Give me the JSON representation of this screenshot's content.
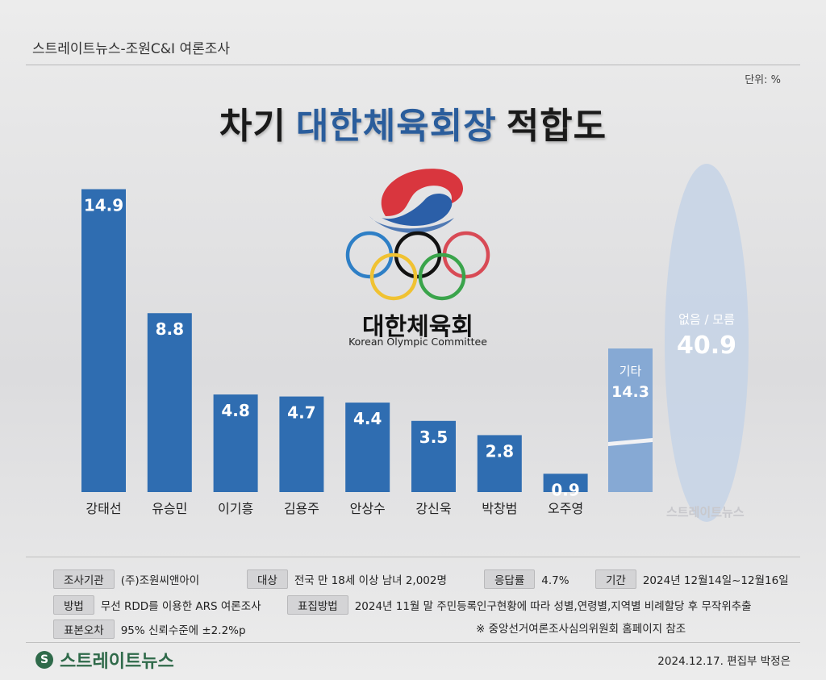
{
  "header": {
    "source": "스트레이트뉴스-조원C&I 여론조사",
    "unit": "단위: %"
  },
  "title": {
    "part1": "차기",
    "part2": "대한체육회장",
    "part3": "적합도"
  },
  "logo": {
    "name": "대한체육회",
    "english": "Korean Olympic Committee"
  },
  "colors": {
    "bar": "#2f6db1",
    "bar_light": "#86a9d4",
    "ellipse": "#c5d3e6"
  },
  "chart_data": {
    "type": "bar",
    "categories": [
      "강태선",
      "유승민",
      "이기흥",
      "김용주",
      "안상수",
      "강신욱",
      "박창범",
      "오주영"
    ],
    "values": [
      14.9,
      8.8,
      4.8,
      4.7,
      4.4,
      3.5,
      2.8,
      0.9
    ],
    "value_labels": [
      "14.9",
      "8.8",
      "4.8",
      "4.7",
      "4.4",
      "3.5",
      "2.8",
      "0.9"
    ],
    "other": {
      "label": "기타",
      "value": 14.3,
      "value_label": "14.3"
    },
    "none": {
      "label": "없음 / 모름",
      "value": 40.9,
      "value_label": "40.9"
    },
    "title": "차기 대한체육회장 적합도",
    "unit": "%"
  },
  "watermark": "스트레이트뉴스",
  "survey": {
    "agency_label": "조사기관",
    "agency": "(주)조원씨앤아이",
    "target_label": "대상",
    "target": "전국 만 18세 이상 남녀 2,002명",
    "response_label": "응답률",
    "response": "4.7%",
    "period_label": "기간",
    "period": "2024년 12월14일~12월16일",
    "method_label": "방법",
    "method": "무선 RDD를 이용한 ARS 여론조사",
    "sampling_label": "표집방법",
    "sampling": "2024년 11월 말 주민등록인구현황에 따라 성별,연령별,지역별 비례할당 후 무작위추출",
    "error_label": "표본오차",
    "error": "95% 신뢰수준에 ±2.2%p",
    "note": "※ 중앙선거여론조사심의위원회 홈페이지 참조"
  },
  "footer": {
    "brand": "스트레이트뉴스",
    "badge": "S",
    "date": "2024.12.17. 편집부 박정은"
  }
}
